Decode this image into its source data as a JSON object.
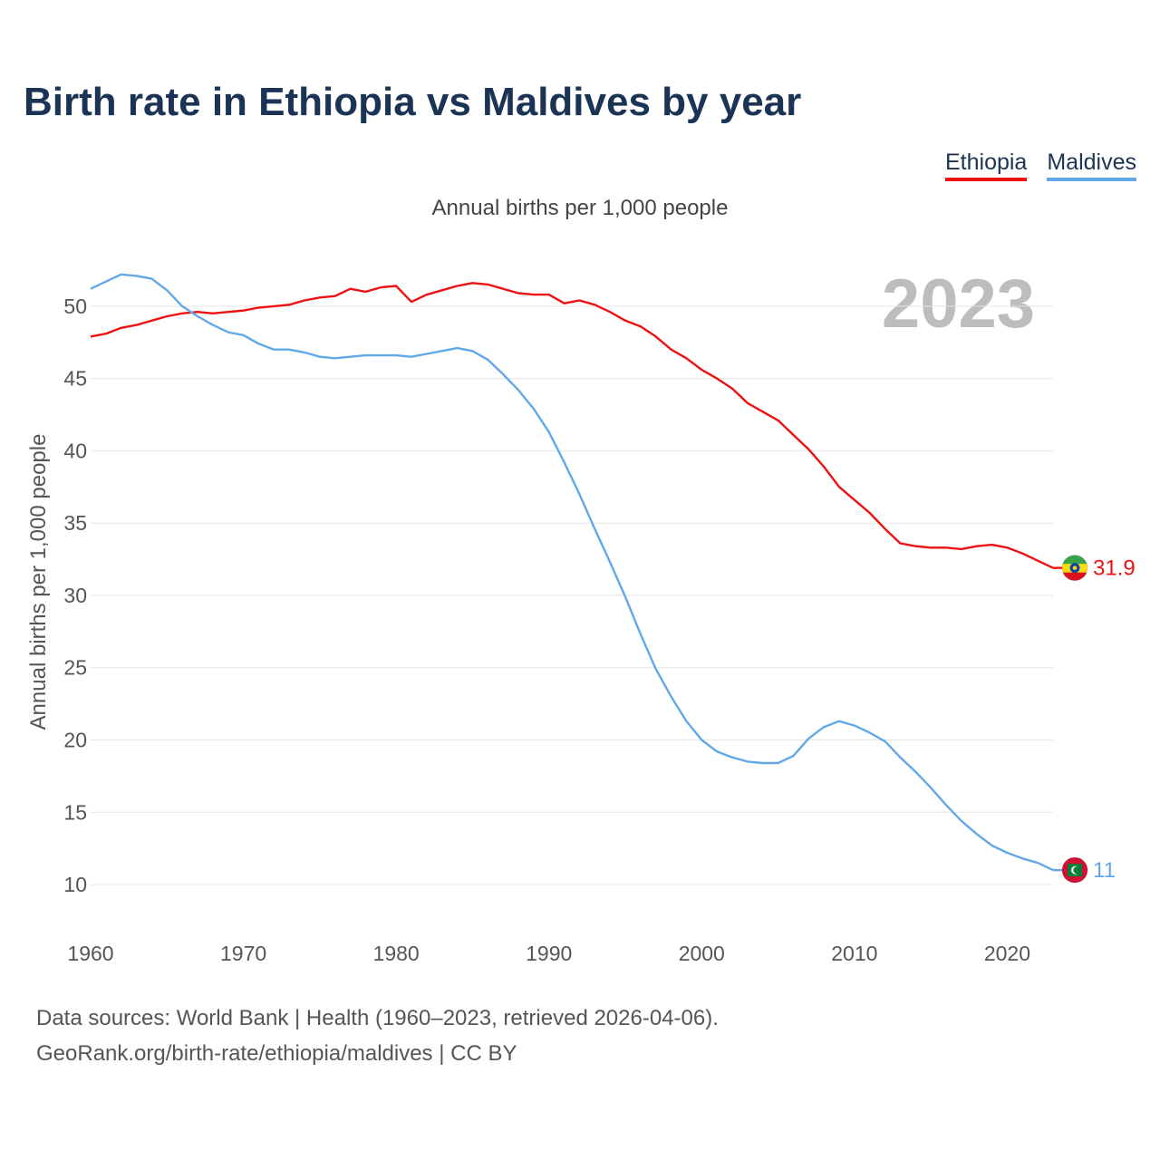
{
  "title": "Birth rate in Ethiopia vs Maldives by year",
  "subtitle": "Annual births per 1,000 people",
  "current_year": "2023",
  "legend": [
    {
      "label": "Ethiopia",
      "color": "#ee1111"
    },
    {
      "label": "Maldives",
      "color": "#62a8e8"
    }
  ],
  "footer": {
    "line1": "Data sources: World Bank | Health (1960–2023, retrieved 2026-04-06).",
    "line2": "GeoRank.org/birth-rate/ethiopia/maldives | CC BY"
  },
  "chart_data": {
    "type": "line",
    "title": "Birth rate in Ethiopia vs Maldives by year",
    "xlabel": "",
    "ylabel": "Annual births per 1,000 people",
    "xlim": [
      1960,
      2023
    ],
    "ylim": [
      8.5,
      53
    ],
    "grid": true,
    "xticks": [
      1960,
      1970,
      1980,
      1990,
      2000,
      2010,
      2020
    ],
    "yticks": [
      10,
      15,
      20,
      25,
      30,
      35,
      40,
      45,
      50
    ],
    "x": [
      1960,
      1961,
      1962,
      1963,
      1964,
      1965,
      1966,
      1967,
      1968,
      1969,
      1970,
      1971,
      1972,
      1973,
      1974,
      1975,
      1976,
      1977,
      1978,
      1979,
      1980,
      1981,
      1982,
      1983,
      1984,
      1985,
      1986,
      1987,
      1988,
      1989,
      1990,
      1991,
      1992,
      1993,
      1994,
      1995,
      1996,
      1997,
      1998,
      1999,
      2000,
      2001,
      2002,
      2003,
      2004,
      2005,
      2006,
      2007,
      2008,
      2009,
      2010,
      2011,
      2012,
      2013,
      2014,
      2015,
      2016,
      2017,
      2018,
      2019,
      2020,
      2021,
      2022,
      2023
    ],
    "series": [
      {
        "name": "Ethiopia",
        "color": "#ee1111",
        "end_label": "31.9",
        "flag": "ethiopia-flag-icon",
        "values": [
          47.9,
          48.1,
          48.5,
          48.7,
          49.0,
          49.3,
          49.5,
          49.6,
          49.5,
          49.6,
          49.7,
          49.9,
          50.0,
          50.1,
          50.4,
          50.6,
          50.7,
          51.2,
          51.0,
          51.3,
          51.4,
          50.3,
          50.8,
          51.1,
          51.4,
          51.6,
          51.5,
          51.2,
          50.9,
          50.8,
          50.8,
          50.2,
          50.4,
          50.1,
          49.6,
          49.0,
          48.6,
          47.9,
          47.0,
          46.4,
          45.6,
          45.0,
          44.3,
          43.3,
          42.7,
          42.1,
          41.1,
          40.1,
          38.9,
          37.5,
          36.6,
          35.7,
          34.6,
          33.6,
          33.4,
          33.3,
          33.3,
          33.2,
          33.4,
          33.5,
          33.3,
          32.9,
          32.4,
          31.9
        ]
      },
      {
        "name": "Maldives",
        "color": "#62a8e8",
        "end_label": "11",
        "flag": "maldives-flag-icon",
        "values": [
          51.2,
          51.7,
          52.2,
          52.1,
          51.9,
          51.1,
          50.0,
          49.3,
          48.7,
          48.2,
          48.0,
          47.4,
          47.0,
          47.0,
          46.8,
          46.5,
          46.4,
          46.5,
          46.6,
          46.6,
          46.6,
          46.5,
          46.7,
          46.9,
          47.1,
          46.9,
          46.3,
          45.3,
          44.2,
          42.9,
          41.3,
          39.2,
          37.0,
          34.6,
          32.3,
          29.9,
          27.3,
          24.9,
          23.0,
          21.3,
          20.0,
          19.2,
          18.8,
          18.5,
          18.4,
          18.4,
          18.9,
          20.1,
          20.9,
          21.3,
          21.0,
          20.5,
          19.9,
          18.8,
          17.8,
          16.7,
          15.5,
          14.4,
          13.5,
          12.7,
          12.2,
          11.8,
          11.5,
          11.0
        ]
      }
    ]
  }
}
